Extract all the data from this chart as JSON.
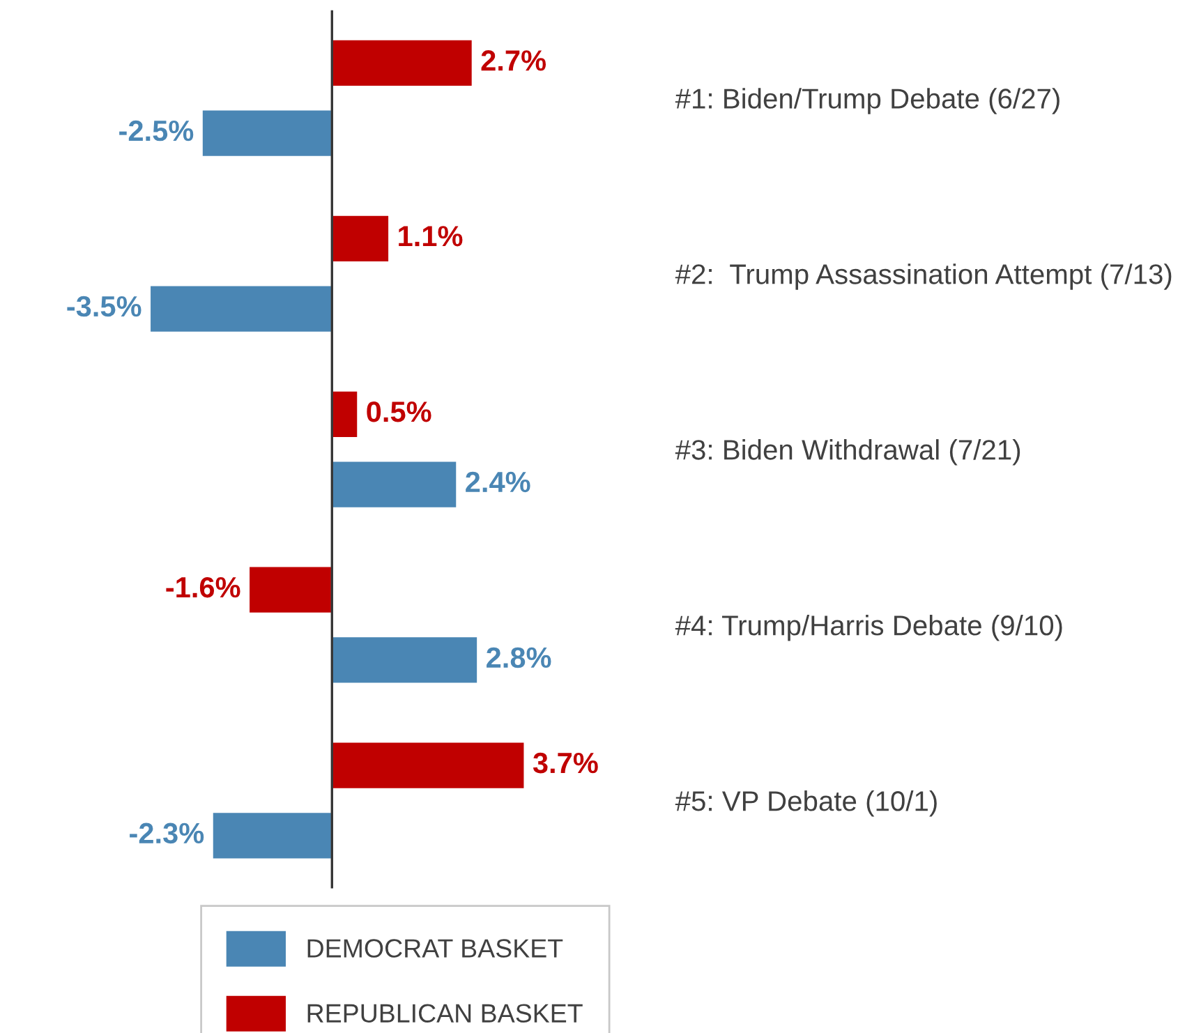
{
  "chart_data": {
    "type": "bar",
    "orientation": "horizontal",
    "categories": [
      "#1: Biden/Trump Debate (6/27)",
      "#2:  Trump Assassination Attempt (7/13)",
      "#3: Biden Withdrawal (7/21)",
      "#4: Trump/Harris Debate (9/10)",
      "#5: VP Debate (10/1)"
    ],
    "series": [
      {
        "name": "DEMOCRAT BASKET",
        "color": "#4a86b4",
        "values": [
          -2.5,
          -3.5,
          2.4,
          2.8,
          -2.3
        ],
        "value_labels": [
          "-2.5%",
          "-3.5%",
          "2.4%",
          "2.8%",
          "-2.3%"
        ]
      },
      {
        "name": "REPUBLICAN BASKET",
        "color": "#c00000",
        "values": [
          2.7,
          1.1,
          0.5,
          -1.6,
          3.7
        ],
        "value_labels": [
          "2.7%",
          "1.1%",
          "0.5%",
          "-1.6%",
          "3.7%"
        ]
      }
    ],
    "legend": "bottom",
    "grid": false
  }
}
